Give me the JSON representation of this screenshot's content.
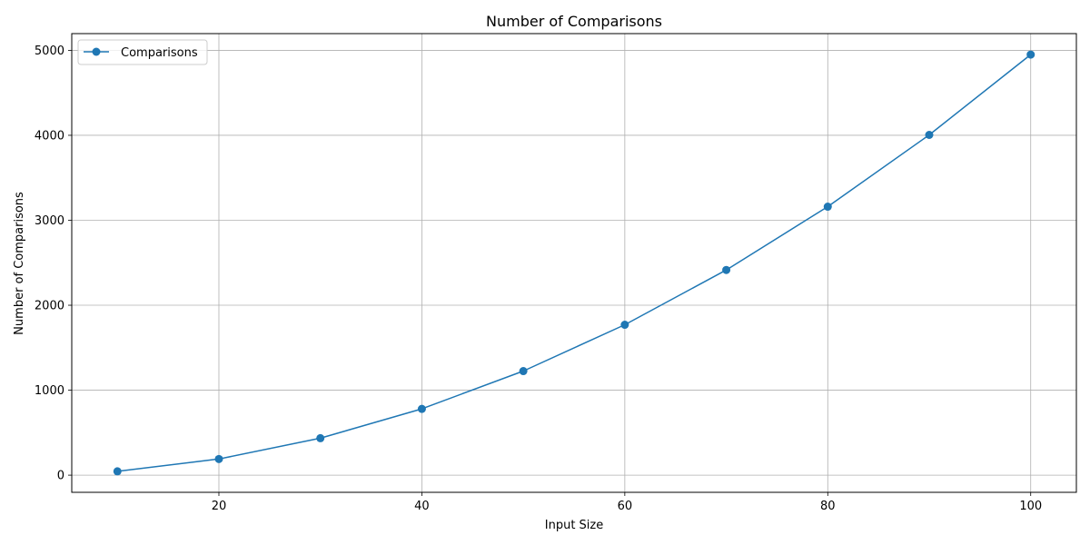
{
  "chart_data": {
    "type": "line",
    "title": "Number of Comparisons",
    "xlabel": "Input Size",
    "ylabel": "Number of Comparisons",
    "x": [
      10,
      20,
      30,
      40,
      50,
      60,
      70,
      80,
      90,
      100
    ],
    "series": [
      {
        "name": "Comparisons",
        "values": [
          45,
          190,
          435,
          780,
          1225,
          1770,
          2415,
          3160,
          4005,
          4950
        ],
        "color": "#1f77b4",
        "marker": "circle"
      }
    ],
    "xlim": [
      5.5,
      104.5
    ],
    "ylim": [
      -202,
      5197
    ],
    "xticks": [
      20,
      40,
      60,
      80,
      100
    ],
    "yticks": [
      0,
      1000,
      2000,
      3000,
      4000,
      5000
    ],
    "grid": true,
    "legend_position": "upper-left"
  }
}
